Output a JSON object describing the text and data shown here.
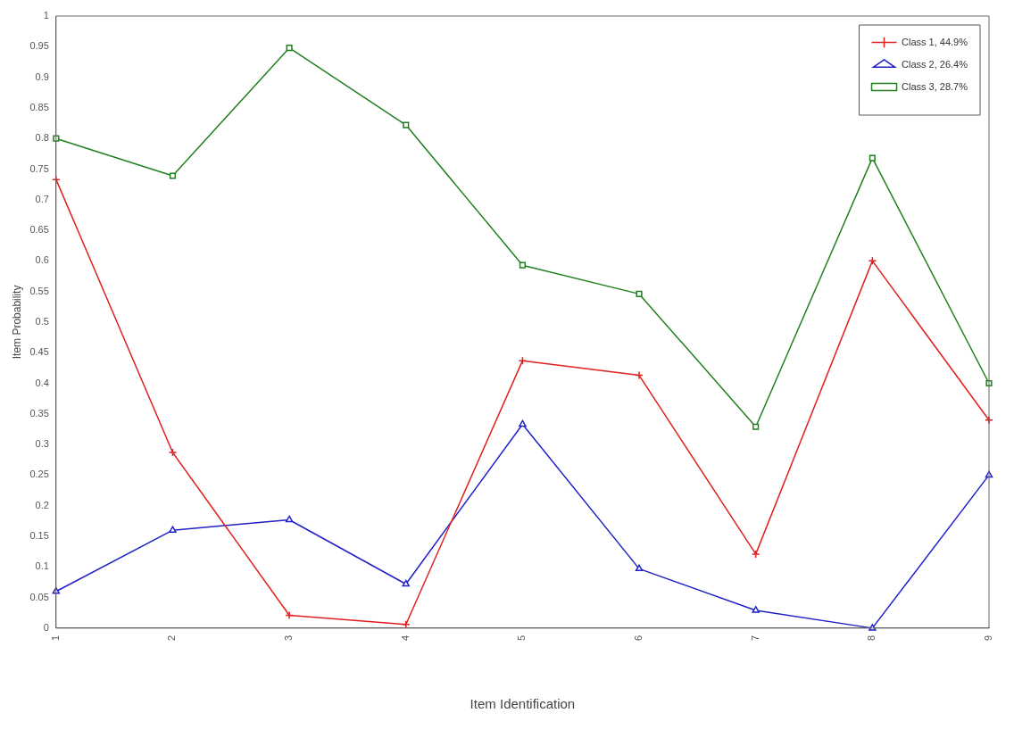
{
  "chart_data": {
    "type": "line",
    "xlabel": "Item Identification",
    "ylabel": "Item Probability",
    "categories": [
      "1",
      "2",
      "3",
      "4",
      "5",
      "6",
      "7",
      "8",
      "9"
    ],
    "series": [
      {
        "name": "Class 1, 44.9%",
        "color": "#e02020",
        "marker": "cross",
        "values": [
          0.733,
          0.287,
          0.021,
          0.006,
          0.437,
          0.413,
          0.121,
          0.6,
          0.34
        ]
      },
      {
        "name": "Class 2, 26.4%",
        "color": "#2020c8",
        "marker": "triangle",
        "values": [
          0.06,
          0.16,
          0.177,
          0.072,
          0.333,
          0.097,
          0.029,
          0,
          0.25
        ]
      },
      {
        "name": "Class 3, 28.7%",
        "color": "#208020",
        "marker": "square",
        "values": [
          0.8,
          0.739,
          0.948,
          0.822,
          0.593,
          0.546,
          0.329,
          0.768,
          0.4
        ]
      }
    ],
    "ylim": [
      0,
      1
    ],
    "yticks": [
      0,
      0.05,
      0.1,
      0.15,
      0.2,
      0.25,
      0.3,
      0.35,
      0.4,
      0.45,
      0.5,
      0.55,
      0.6,
      0.65,
      0.7,
      0.75,
      0.8,
      0.85,
      0.9,
      0.95,
      1
    ],
    "grid": false,
    "legend": "top right",
    "line_style": "solid"
  }
}
